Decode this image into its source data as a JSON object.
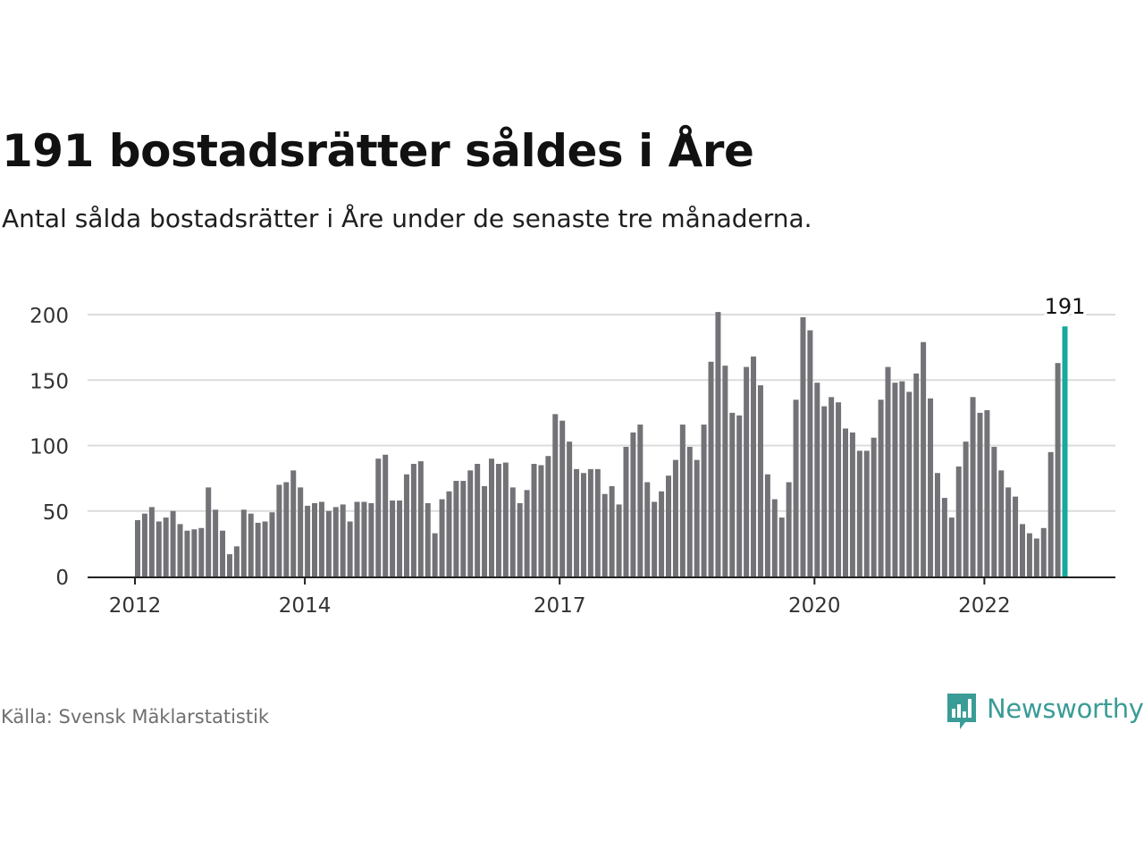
{
  "header": {
    "title": "191 bostadsrätter såldes i Åre",
    "subtitle": "Antal sålda bostadsrätter i Åre under de senaste tre månaderna."
  },
  "footer": {
    "source": "Källa: Svensk Mäklarstatistik",
    "brand": "Newsworthy",
    "brand_icon": "newsworthy-logo-icon"
  },
  "colors": {
    "bar": "#737277",
    "highlight": "#18a89c",
    "grid": "#dcdcdc",
    "axis": "#222222",
    "brand": "#3a9c96"
  },
  "chart_data": {
    "type": "bar",
    "x_start": "2012-01",
    "x_interval": "month",
    "xtick_labels": [
      "2012",
      "2014",
      "2017",
      "2020",
      "2022"
    ],
    "yticks": [
      0,
      50,
      100,
      150,
      200
    ],
    "ylim": [
      0,
      210
    ],
    "grid": "horizontal",
    "highlight_label": "191",
    "values": [
      43,
      48,
      53,
      42,
      45,
      50,
      40,
      35,
      36,
      37,
      68,
      51,
      35,
      17,
      23,
      51,
      48,
      41,
      42,
      49,
      70,
      72,
      81,
      68,
      54,
      56,
      57,
      50,
      53,
      55,
      42,
      57,
      57,
      56,
      90,
      93,
      58,
      58,
      78,
      86,
      88,
      56,
      33,
      59,
      65,
      73,
      73,
      81,
      86,
      69,
      90,
      86,
      87,
      68,
      56,
      66,
      86,
      85,
      92,
      124,
      119,
      103,
      82,
      79,
      82,
      82,
      63,
      69,
      55,
      99,
      110,
      116,
      72,
      57,
      65,
      77,
      89,
      116,
      99,
      89,
      116,
      164,
      202,
      161,
      125,
      123,
      160,
      168,
      146,
      78,
      59,
      45,
      72,
      135,
      198,
      188,
      148,
      130,
      137,
      133,
      113,
      110,
      96,
      96,
      106,
      135,
      160,
      148,
      149,
      141,
      155,
      179,
      136,
      79,
      60,
      45,
      84,
      103,
      137,
      125,
      127,
      99,
      81,
      68,
      61,
      40,
      33,
      29,
      37,
      95,
      163,
      191
    ]
  }
}
